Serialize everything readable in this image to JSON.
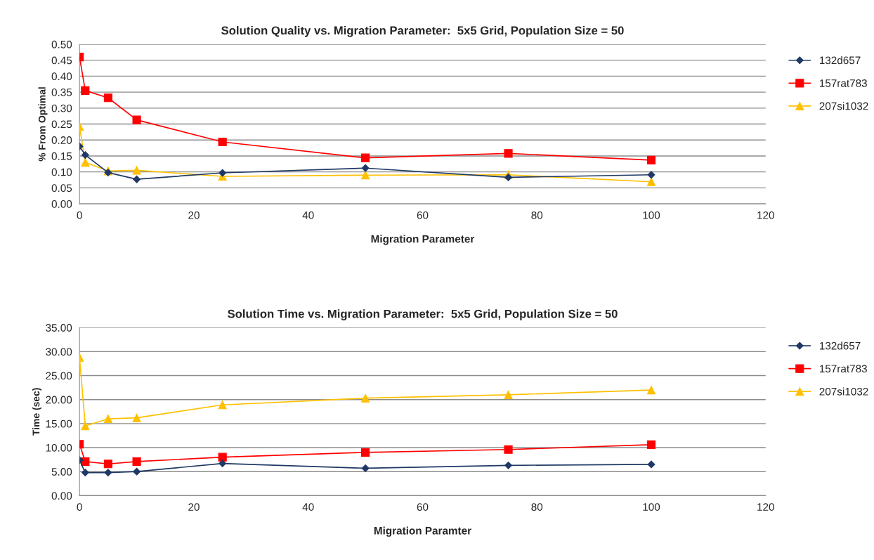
{
  "chart_data": [
    {
      "type": "line",
      "title": "Solution Quality vs. Migration Parameter:  5x5 Grid, Population Size = 50",
      "xlabel": "Migration Parameter",
      "ylabel": "% From Optimal",
      "x": [
        0,
        1,
        5,
        10,
        25,
        50,
        75,
        100
      ],
      "series": [
        {
          "name": "132d657",
          "color": "#1f3864",
          "marker": "diamond",
          "values": [
            0.18,
            0.153,
            0.098,
            0.077,
            0.097,
            0.112,
            0.083,
            0.091
          ]
        },
        {
          "name": "157rat783",
          "color": "#ff0000",
          "marker": "square",
          "values": [
            0.46,
            0.355,
            0.332,
            0.263,
            0.194,
            0.144,
            0.158,
            0.137
          ]
        },
        {
          "name": "207si1032",
          "color": "#ffc000",
          "marker": "triangle",
          "values": [
            0.242,
            0.13,
            0.103,
            0.105,
            0.086,
            0.09,
            0.091,
            0.069
          ]
        }
      ],
      "xlim": [
        0,
        120
      ],
      "xticks": [
        0,
        20,
        40,
        60,
        80,
        100,
        120
      ],
      "ylim": [
        0,
        0.5
      ],
      "yticks": [
        {
          "value": 0,
          "label": "0.00"
        },
        {
          "value": 0.05,
          "label": "0.05"
        },
        {
          "value": 0.1,
          "label": "0.10"
        },
        {
          "value": 0.15,
          "label": "0.15"
        },
        {
          "value": 0.2,
          "label": "0.20"
        },
        {
          "value": 0.25,
          "label": "0.25"
        },
        {
          "value": 0.3,
          "label": "0.30"
        },
        {
          "value": 0.35,
          "label": "0.35"
        },
        {
          "value": 0.4,
          "label": "0.40"
        },
        {
          "value": 0.45,
          "label": "0.45"
        },
        {
          "value": 0.5,
          "label": "0.50"
        }
      ],
      "grid": "y",
      "legend": "right"
    },
    {
      "type": "line",
      "title": "Solution Time vs. Migration Parameter:  5x5 Grid, Population Size = 50",
      "xlabel": "Migration Paramter",
      "ylabel": "Time (sec)",
      "x": [
        0,
        1,
        5,
        10,
        25,
        50,
        75,
        100
      ],
      "series": [
        {
          "name": "132d657",
          "color": "#1f3864",
          "marker": "diamond",
          "values": [
            7.4,
            4.8,
            4.8,
            5.0,
            6.7,
            5.7,
            6.3,
            6.5
          ]
        },
        {
          "name": "157rat783",
          "color": "#ff0000",
          "marker": "square",
          "values": [
            10.7,
            7.1,
            6.6,
            7.1,
            8.0,
            9.0,
            9.6,
            10.6
          ]
        },
        {
          "name": "207si1032",
          "color": "#ffc000",
          "marker": "triangle",
          "values": [
            28.8,
            14.5,
            16.0,
            16.2,
            18.9,
            20.3,
            21.0,
            22.0
          ]
        }
      ],
      "xlim": [
        0,
        120
      ],
      "xticks": [
        0,
        20,
        40,
        60,
        80,
        100,
        120
      ],
      "ylim": [
        0,
        35
      ],
      "yticks": [
        {
          "value": 0,
          "label": "0.00"
        },
        {
          "value": 5,
          "label": "5.00"
        },
        {
          "value": 10,
          "label": "10.00"
        },
        {
          "value": 15,
          "label": "15.00"
        },
        {
          "value": 20,
          "label": "20.00"
        },
        {
          "value": 25,
          "label": "25.00"
        },
        {
          "value": 30,
          "label": "30.00"
        },
        {
          "value": 35,
          "label": "35.00"
        }
      ],
      "grid": "y",
      "legend": "right"
    }
  ]
}
